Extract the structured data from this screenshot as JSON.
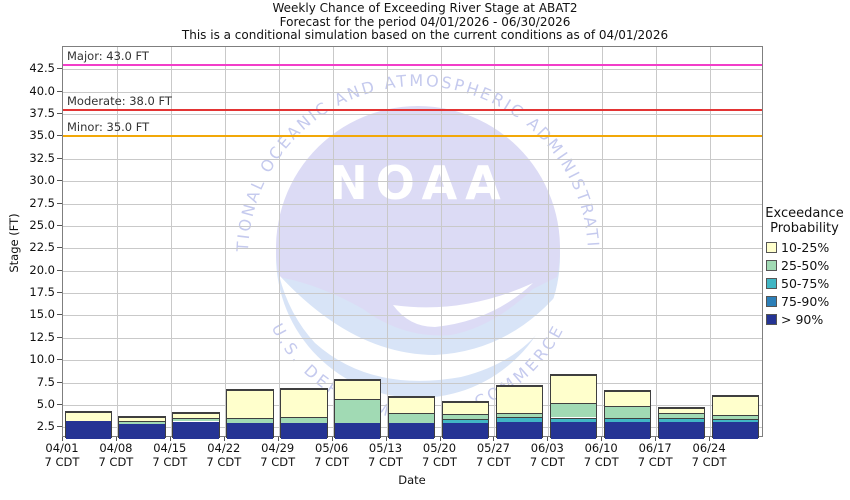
{
  "title": {
    "line1": "Weekly Chance of Exceeding River Stage at ABAT2",
    "line2": "Forecast for the period 04/01/2026 - 06/30/2026",
    "line3": "This is a conditional simulation based on the current conditions as of 04/01/2026"
  },
  "y_axis": {
    "label": "Stage (FT)",
    "tick_values": [
      2.5,
      5.0,
      7.5,
      10.0,
      12.5,
      15.0,
      17.5,
      20.0,
      22.5,
      25.0,
      27.5,
      30.0,
      32.5,
      35.0,
      37.5,
      40.0,
      42.5
    ]
  },
  "x_axis": {
    "label": "Date",
    "tick_sub": "7 CDT"
  },
  "thresholds": [
    {
      "name": "major",
      "label": "Major: 43.0 FT",
      "value": 43.0,
      "color": "#f23ec9"
    },
    {
      "name": "moderate",
      "label": "Moderate: 38.0 FT",
      "value": 38.0,
      "color": "#e33434"
    },
    {
      "name": "minor",
      "label": "Minor: 35.0 FT",
      "value": 35.0,
      "color": "#f2a808"
    }
  ],
  "legend": {
    "title_line1": "Exceedance",
    "title_line2": "Probability",
    "items": [
      {
        "label": "10-25%",
        "color": "#ffffcc"
      },
      {
        "label": "25-50%",
        "color": "#a1dab4"
      },
      {
        "label": "50-75%",
        "color": "#41b6c4"
      },
      {
        "label": "75-90%",
        "color": "#2c7fb8"
      },
      {
        "label": "> 90%",
        "color": "#253494"
      }
    ]
  },
  "watermark": {
    "org": "NOAA",
    "arc_top": "NATIONAL OCEANIC AND ATMOSPHERIC ADMINISTRATION",
    "arc_bottom": "U.S. DEPARTMENT OF COMMERCE"
  },
  "chart_data": {
    "type": "bar",
    "stacked": true,
    "grid": true,
    "legend_position": "right",
    "title": "Weekly Chance of Exceeding River Stage at ABAT2",
    "xlabel": "Date",
    "ylabel": "Stage (FT)",
    "ylim": [
      1.3,
      45.0
    ],
    "bar_base_ft": 1.3,
    "categories": [
      "04/01",
      "04/08",
      "04/15",
      "04/22",
      "04/29",
      "05/06",
      "05/13",
      "05/20",
      "05/27",
      "06/03",
      "06/10",
      "06/17",
      "06/24"
    ],
    "series": [
      {
        "name": "> 90%",
        "color": "#253494",
        "tops": [
          3.35,
          3.0,
          3.25,
          3.1,
          3.1,
          3.1,
          3.1,
          3.1,
          3.15,
          3.15,
          3.15,
          3.15,
          3.15
        ]
      },
      {
        "name": "75-90%",
        "color": "#2c7fb8",
        "tops": [
          3.35,
          3.0,
          3.25,
          3.1,
          3.1,
          3.1,
          3.1,
          3.1,
          3.15,
          3.15,
          3.15,
          3.15,
          3.15
        ]
      },
      {
        "name": "50-75%",
        "color": "#41b6c4",
        "tops": [
          3.35,
          3.0,
          3.25,
          3.1,
          3.1,
          3.1,
          3.1,
          3.55,
          3.7,
          3.7,
          3.6,
          3.6,
          3.55
        ]
      },
      {
        "name": "25-50%",
        "color": "#a1dab4",
        "tops": [
          3.35,
          3.3,
          3.6,
          3.65,
          3.7,
          5.75,
          4.2,
          4.05,
          4.15,
          5.3,
          5.0,
          4.15,
          3.95
        ]
      },
      {
        "name": "10-25%",
        "color": "#ffffcc",
        "tops": [
          4.35,
          3.75,
          4.2,
          6.75,
          6.85,
          7.85,
          6.05,
          5.4,
          7.2,
          8.45,
          6.65,
          4.8,
          6.1
        ]
      }
    ]
  }
}
